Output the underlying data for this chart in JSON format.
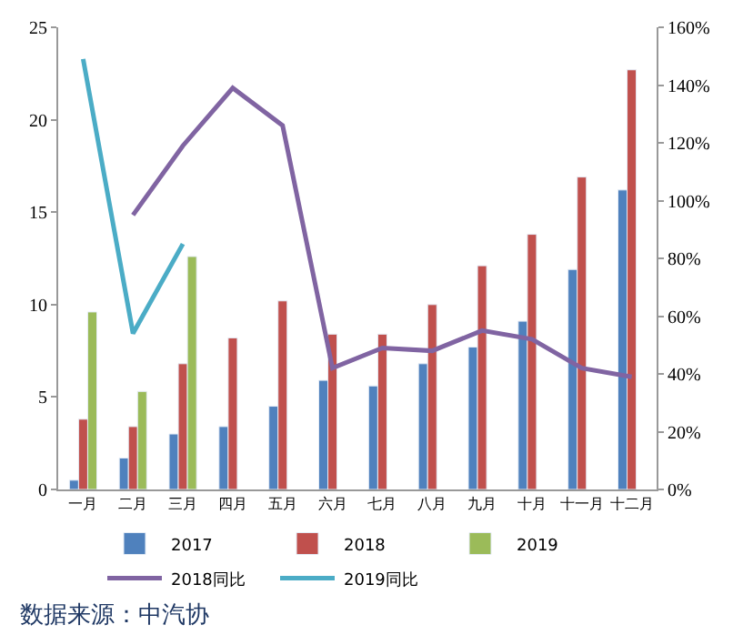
{
  "chart_data": {
    "type": "bar",
    "categories": [
      "一月",
      "二月",
      "三月",
      "四月",
      "五月",
      "六月",
      "七月",
      "八月",
      "九月",
      "十月",
      "十一月",
      "十二月"
    ],
    "series": [
      {
        "name": "2017",
        "color": "#4f81bd",
        "values": [
          0.5,
          1.7,
          3.0,
          3.4,
          4.5,
          5.9,
          5.6,
          6.8,
          7.7,
          9.1,
          11.9,
          16.2
        ]
      },
      {
        "name": "2018",
        "color": "#c0504d",
        "values": [
          3.8,
          3.4,
          6.8,
          8.2,
          10.2,
          8.4,
          8.4,
          10.0,
          12.1,
          13.8,
          16.9,
          22.7
        ]
      },
      {
        "name": "2019",
        "color": "#9bbb59",
        "values": [
          9.6,
          5.3,
          12.6,
          null,
          null,
          null,
          null,
          null,
          null,
          null,
          null,
          null
        ]
      },
      {
        "name": "2018同比",
        "type": "line",
        "axis": "y2",
        "color": "#8064a2",
        "values": [
          null,
          95,
          119,
          139,
          126,
          42,
          49,
          48,
          55,
          52,
          42,
          39
        ]
      },
      {
        "name": "2019同比",
        "type": "line",
        "axis": "y2",
        "color": "#4bacc6",
        "values": [
          149,
          54,
          85,
          null,
          null,
          null,
          null,
          null,
          null,
          null,
          null,
          null
        ]
      }
    ],
    "ylim": [
      0,
      25
    ],
    "yticks": [
      0,
      5,
      10,
      15,
      20,
      25
    ],
    "y2lim": [
      0,
      160
    ],
    "y2ticks": [
      {
        "value": 0,
        "label": "0%"
      },
      {
        "value": 20,
        "label": "20%"
      },
      {
        "value": 40,
        "label": "40%"
      },
      {
        "value": 60,
        "label": "60%"
      },
      {
        "value": 80,
        "label": "80%"
      },
      {
        "value": 100,
        "label": "100%"
      },
      {
        "value": 120,
        "label": "120%"
      },
      {
        "value": 140,
        "label": "140%"
      },
      {
        "value": 160,
        "label": "160%"
      }
    ],
    "legend": "bottom",
    "marker": "none",
    "annotations": [
      "数据来源：中汽协"
    ]
  }
}
